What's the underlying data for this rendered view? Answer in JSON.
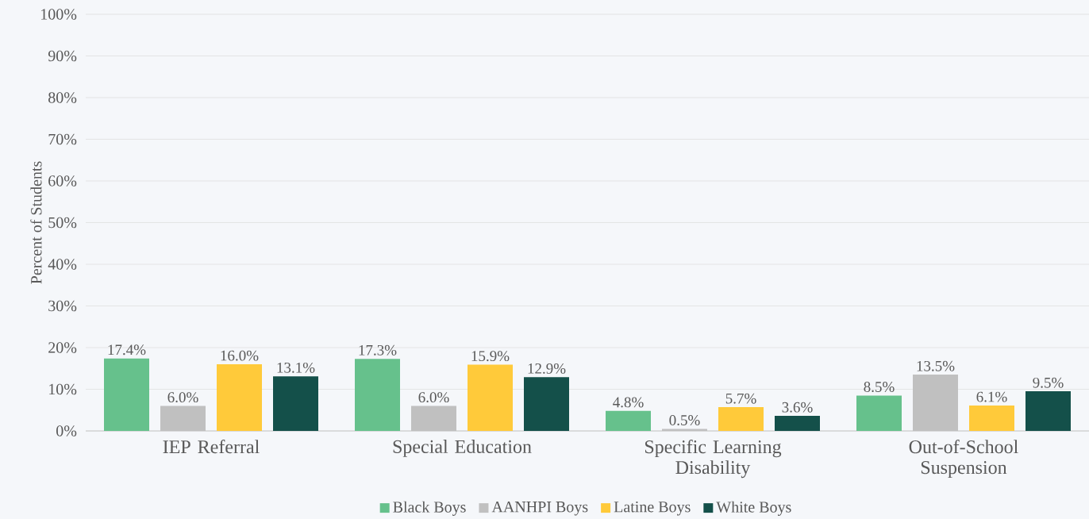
{
  "chart_data": {
    "type": "bar",
    "ylabel": "Percent of Students",
    "categories": [
      "IEP Referral",
      "Special Education",
      "Specific Learning Disability",
      "Out-of-School Suspension"
    ],
    "series": [
      {
        "name": "Black Boys",
        "color": "#66c18c",
        "values": [
          17.4,
          17.3,
          4.8,
          8.5
        ],
        "value_labels": [
          "17.4%",
          "17.3%",
          "4.8%",
          "8.5%"
        ]
      },
      {
        "name": "AANHPI Boys",
        "color": "#c0c0c0",
        "values": [
          6.0,
          6.0,
          0.5,
          13.5
        ],
        "value_labels": [
          "6.0%",
          "6.0%",
          "0.5%",
          "13.5%"
        ]
      },
      {
        "name": "Latine Boys",
        "color": "#ffca3a",
        "values": [
          16.0,
          15.9,
          5.7,
          6.1
        ],
        "value_labels": [
          "16.0%",
          "15.9%",
          "5.7%",
          "6.1%"
        ]
      },
      {
        "name": "White Boys",
        "color": "#14504a",
        "values": [
          13.1,
          12.9,
          3.6,
          9.5
        ],
        "value_labels": [
          "13.1%",
          "12.9%",
          "3.6%",
          "9.5%"
        ]
      }
    ],
    "ylim": [
      0,
      100
    ],
    "yticks": [
      {
        "value": 0,
        "label": "0%"
      },
      {
        "value": 10,
        "label": "10%"
      },
      {
        "value": 20,
        "label": "20%"
      },
      {
        "value": 30,
        "label": "30%"
      },
      {
        "value": 40,
        "label": "40%"
      },
      {
        "value": 50,
        "label": "50%"
      },
      {
        "value": 60,
        "label": "60%"
      },
      {
        "value": 70,
        "label": "70%"
      },
      {
        "value": 80,
        "label": "80%"
      },
      {
        "value": 90,
        "label": "90%"
      },
      {
        "value": 100,
        "label": "100%"
      }
    ],
    "grid": "y",
    "legend": "bottom"
  }
}
